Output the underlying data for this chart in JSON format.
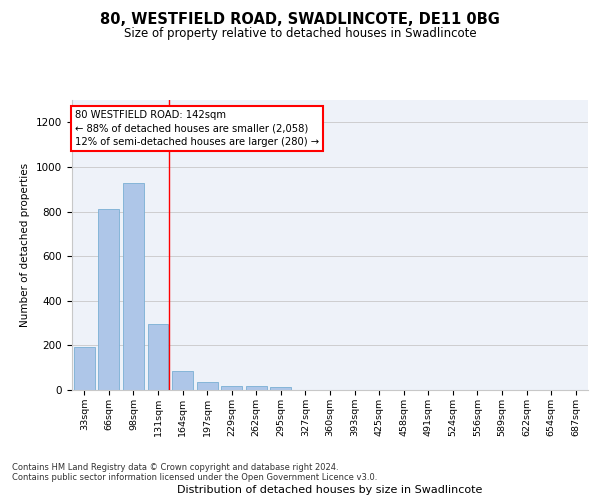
{
  "title": "80, WESTFIELD ROAD, SWADLINCOTE, DE11 0BG",
  "subtitle": "Size of property relative to detached houses in Swadlincote",
  "xlabel": "Distribution of detached houses by size in Swadlincote",
  "ylabel": "Number of detached properties",
  "footnote1": "Contains HM Land Registry data © Crown copyright and database right 2024.",
  "footnote2": "Contains public sector information licensed under the Open Government Licence v3.0.",
  "bar_labels": [
    "33sqm",
    "66sqm",
    "98sqm",
    "131sqm",
    "164sqm",
    "197sqm",
    "229sqm",
    "262sqm",
    "295sqm",
    "327sqm",
    "360sqm",
    "393sqm",
    "425sqm",
    "458sqm",
    "491sqm",
    "524sqm",
    "556sqm",
    "589sqm",
    "622sqm",
    "654sqm",
    "687sqm"
  ],
  "bar_values": [
    193,
    810,
    930,
    295,
    85,
    35,
    20,
    18,
    12,
    0,
    0,
    0,
    0,
    0,
    0,
    0,
    0,
    0,
    0,
    0,
    0
  ],
  "bar_color": "#aec6e8",
  "bar_edgecolor": "#5a9fd4",
  "ylim": [
    0,
    1300
  ],
  "yticks": [
    0,
    200,
    400,
    600,
    800,
    1000,
    1200
  ],
  "property_label": "80 WESTFIELD ROAD: 142sqm",
  "annotation_line1": "← 88% of detached houses are smaller (2,058)",
  "annotation_line2": "12% of semi-detached houses are larger (280) →",
  "red_line_x": 3.45,
  "background_color": "#eef2f9",
  "grid_color": "#c8c8c8",
  "bar_edge_color": "#7aafd4"
}
